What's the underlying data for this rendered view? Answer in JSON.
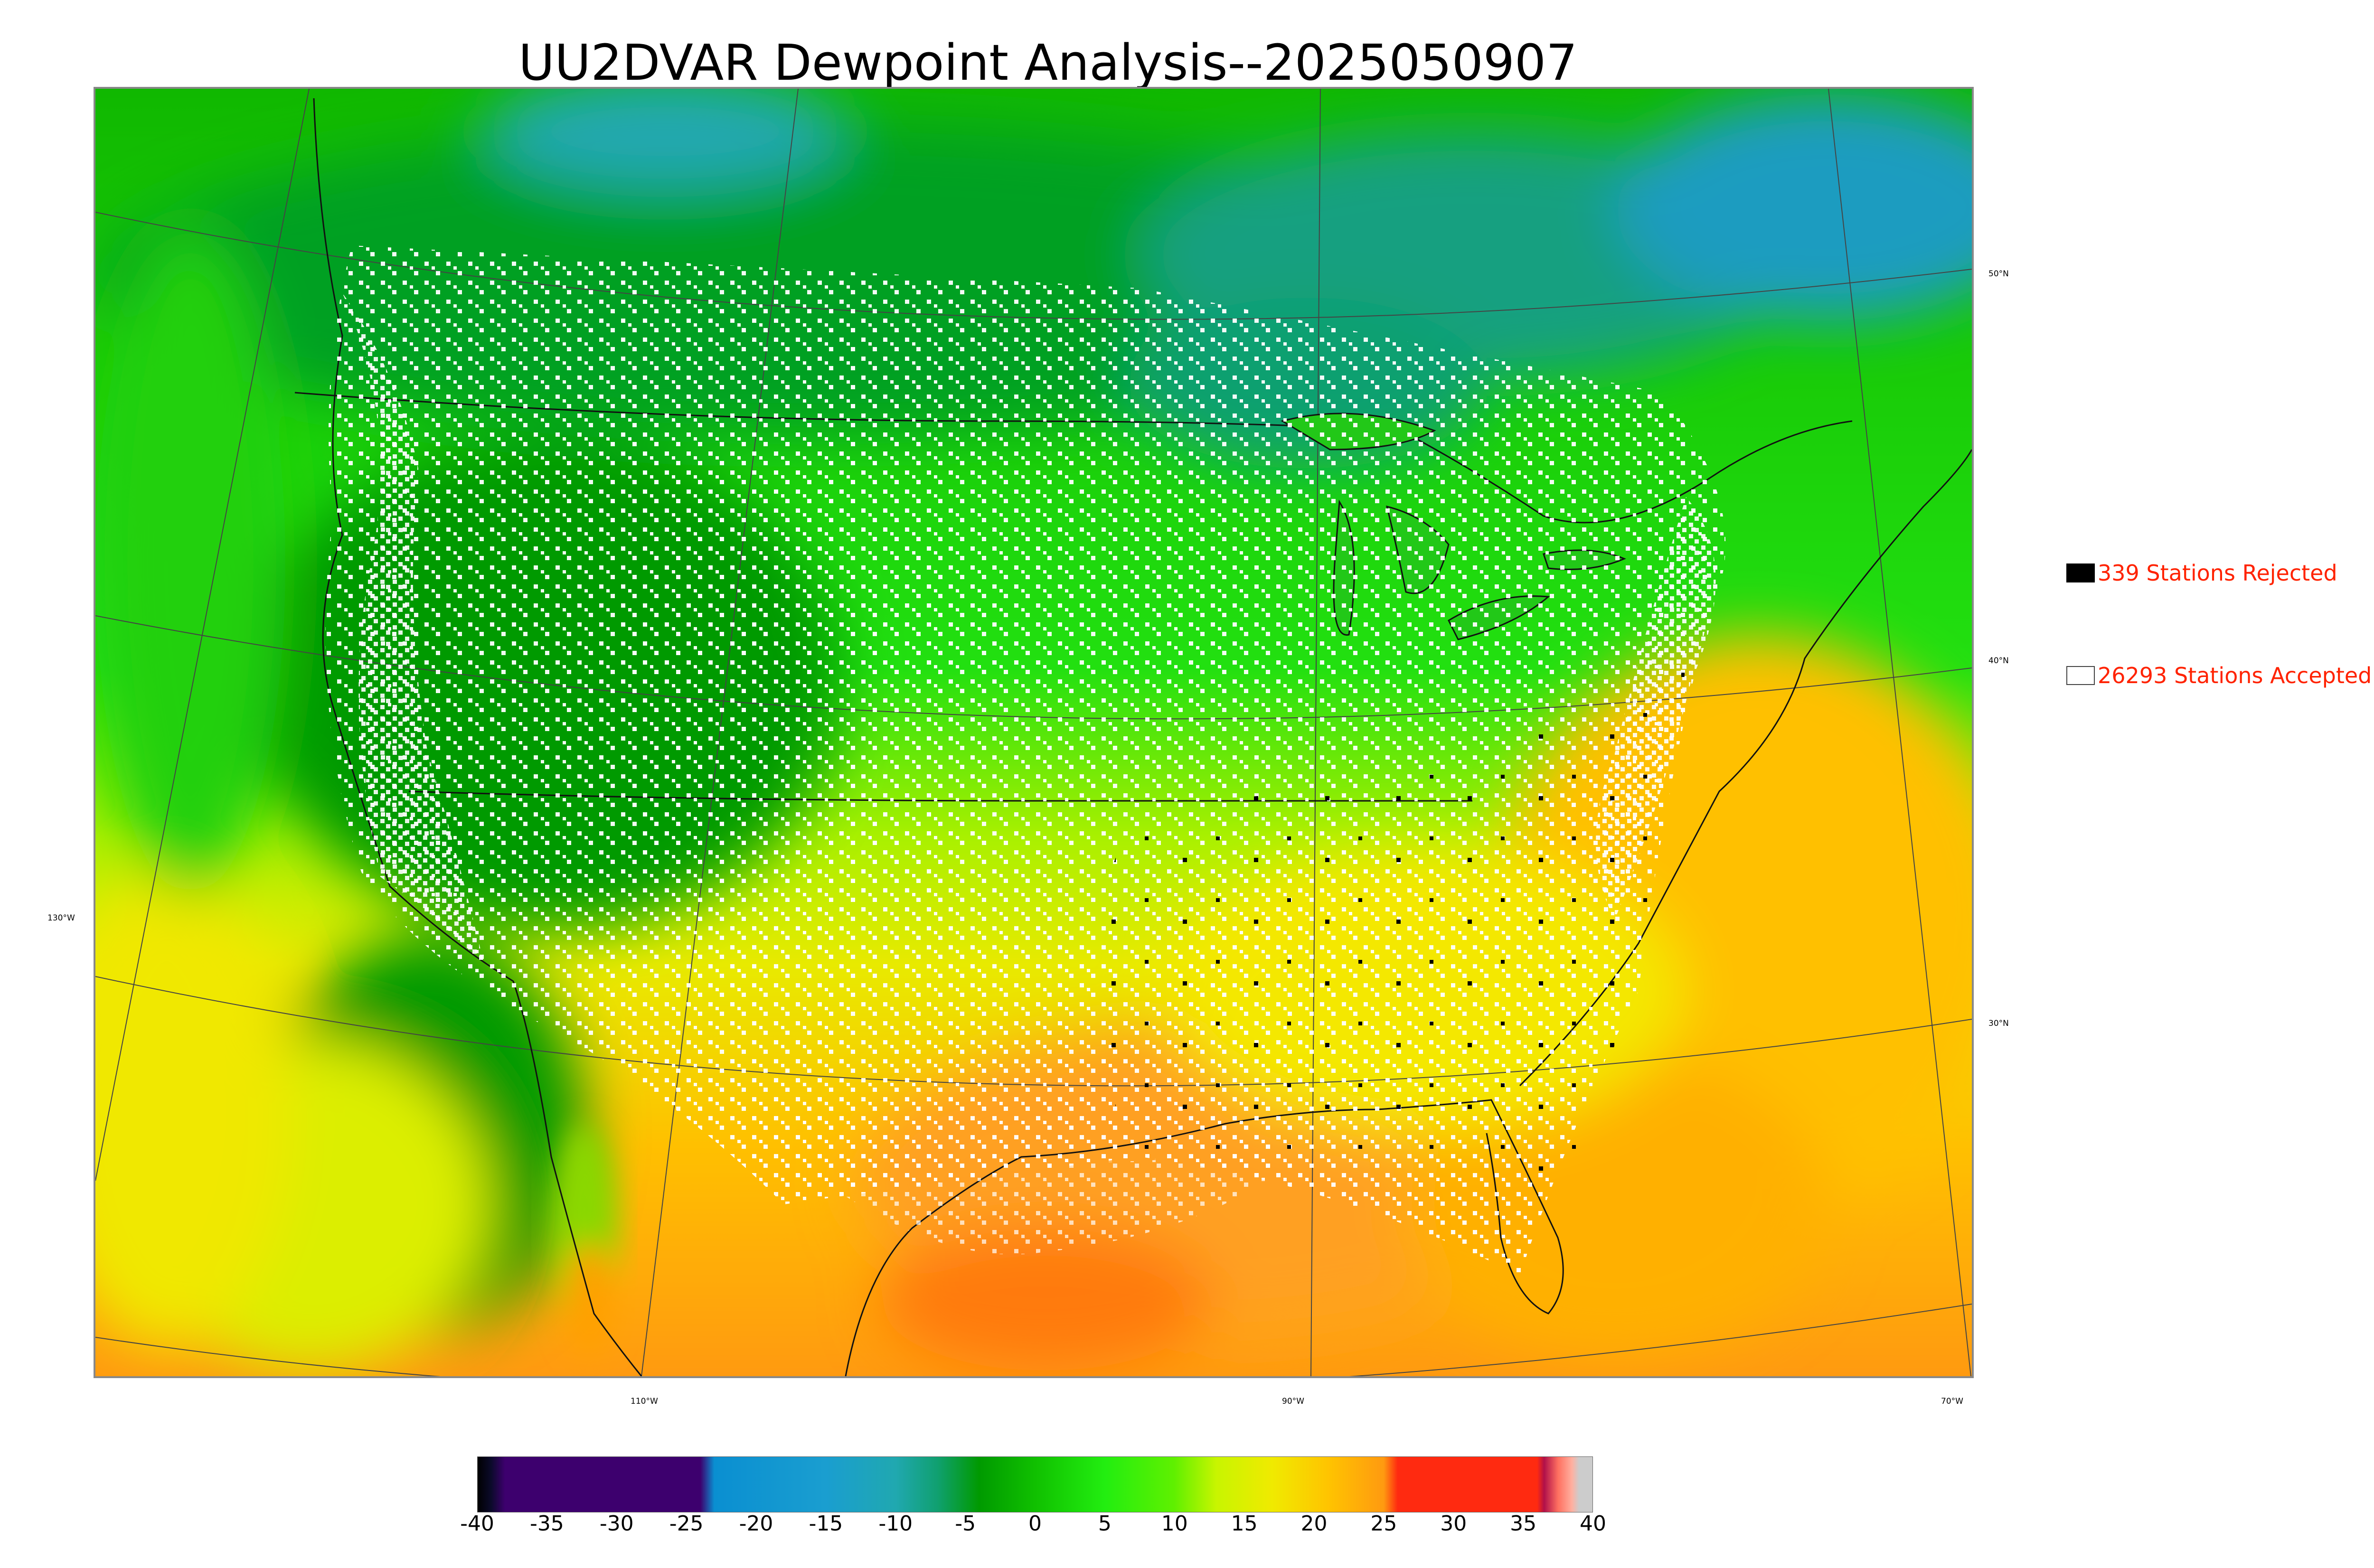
{
  "title": "UU2DVAR Dewpoint Analysis--2025050907",
  "map": {
    "lat_labels": [
      "50°N",
      "40°N",
      "30°N"
    ],
    "lon_labels": [
      "130°W",
      "110°W",
      "90°W",
      "70°W"
    ]
  },
  "legend": {
    "rejected": {
      "label": "339 Stations Rejected",
      "color": "#000000"
    },
    "accepted": {
      "label": "26293 Stations Accepted",
      "color": "#ffffff"
    }
  },
  "colorbar": {
    "ticks": [
      "-40",
      "-35",
      "-30",
      "-25",
      "-20",
      "-15",
      "-10",
      "-5",
      "0",
      "5",
      "10",
      "15",
      "20",
      "25",
      "30",
      "35",
      "40"
    ],
    "stops": [
      {
        "v": -40,
        "c": "#000000"
      },
      {
        "v": -39,
        "c": "#0b0a2a"
      },
      {
        "v": -38,
        "c": "#3d006e"
      },
      {
        "v": -24,
        "c": "#3d006e"
      },
      {
        "v": -23,
        "c": "#0a8fd1"
      },
      {
        "v": -15,
        "c": "#1a9ed0"
      },
      {
        "v": -10,
        "c": "#20a8b0"
      },
      {
        "v": -7,
        "c": "#10a070"
      },
      {
        "v": -4,
        "c": "#009a00"
      },
      {
        "v": 0,
        "c": "#10c000"
      },
      {
        "v": 5,
        "c": "#22ee10"
      },
      {
        "v": 10,
        "c": "#60f000"
      },
      {
        "v": 13,
        "c": "#c8f500"
      },
      {
        "v": 17,
        "c": "#f0ea00"
      },
      {
        "v": 21,
        "c": "#ffc400"
      },
      {
        "v": 25,
        "c": "#ff9a10"
      },
      {
        "v": 26,
        "c": "#ff2a10"
      },
      {
        "v": 36,
        "c": "#ff2a10"
      },
      {
        "v": 36.5,
        "c": "#b0104a"
      },
      {
        "v": 37.5,
        "c": "#ff7060"
      },
      {
        "v": 38.5,
        "c": "#ffb0a0"
      },
      {
        "v": 39,
        "c": "#cccccc"
      },
      {
        "v": 40,
        "c": "#cccccc"
      }
    ]
  }
}
